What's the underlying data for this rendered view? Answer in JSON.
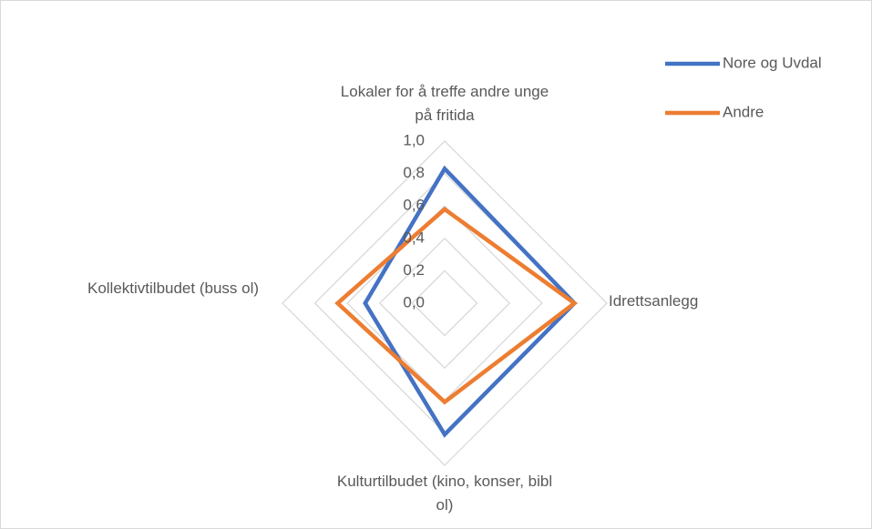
{
  "chart_data": {
    "type": "radar",
    "categories": [
      "Lokaler for å treffe andre unge på fritida",
      "Idrettsanlegg",
      "Kulturtilbudet (kino, konser, bibl ol)",
      "Kollektivtilbudet (buss ol)"
    ],
    "series": [
      {
        "name": "Nore og Uvdal",
        "color": "#4472c4",
        "values": [
          0.83,
          0.8,
          0.81,
          0.49
        ]
      },
      {
        "name": "Andre",
        "color": "#ed7d31",
        "values": [
          0.58,
          0.8,
          0.61,
          0.66
        ]
      }
    ],
    "ylim": [
      0,
      1
    ],
    "yticks": [
      {
        "value": 0,
        "label": "0,0"
      },
      {
        "value": 0.2,
        "label": "0,2"
      },
      {
        "value": 0.4,
        "label": "0,4"
      },
      {
        "value": 0.6,
        "label": "0,6"
      },
      {
        "value": 0.8,
        "label": "0,8"
      },
      {
        "value": 1,
        "label": "1,0"
      }
    ],
    "grid": true,
    "legend": "top-right"
  }
}
